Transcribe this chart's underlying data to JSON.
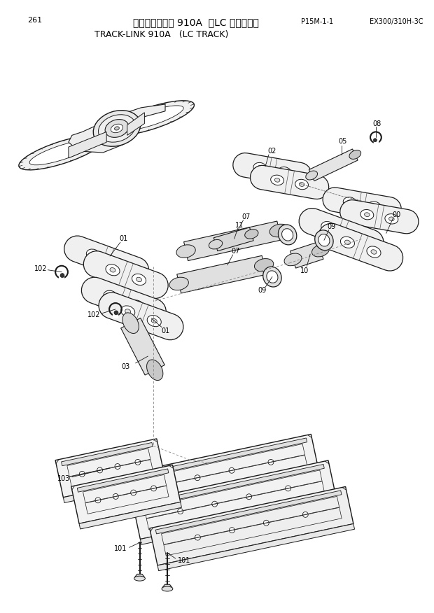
{
  "page_number": "261",
  "title_jp": "トラックリンク 910A",
  "title_jp_sub": "（LC トラック）",
  "title_en": "TRACK-LINK 910A",
  "title_en_sub": "(LC TRACK)",
  "part_number": "P15M-1-1",
  "model": "EX300/310H-3C",
  "bg_color": "#ffffff",
  "line_color": "#1a1a1a",
  "fig_width": 6.2,
  "fig_height": 8.76,
  "dpi": 100
}
